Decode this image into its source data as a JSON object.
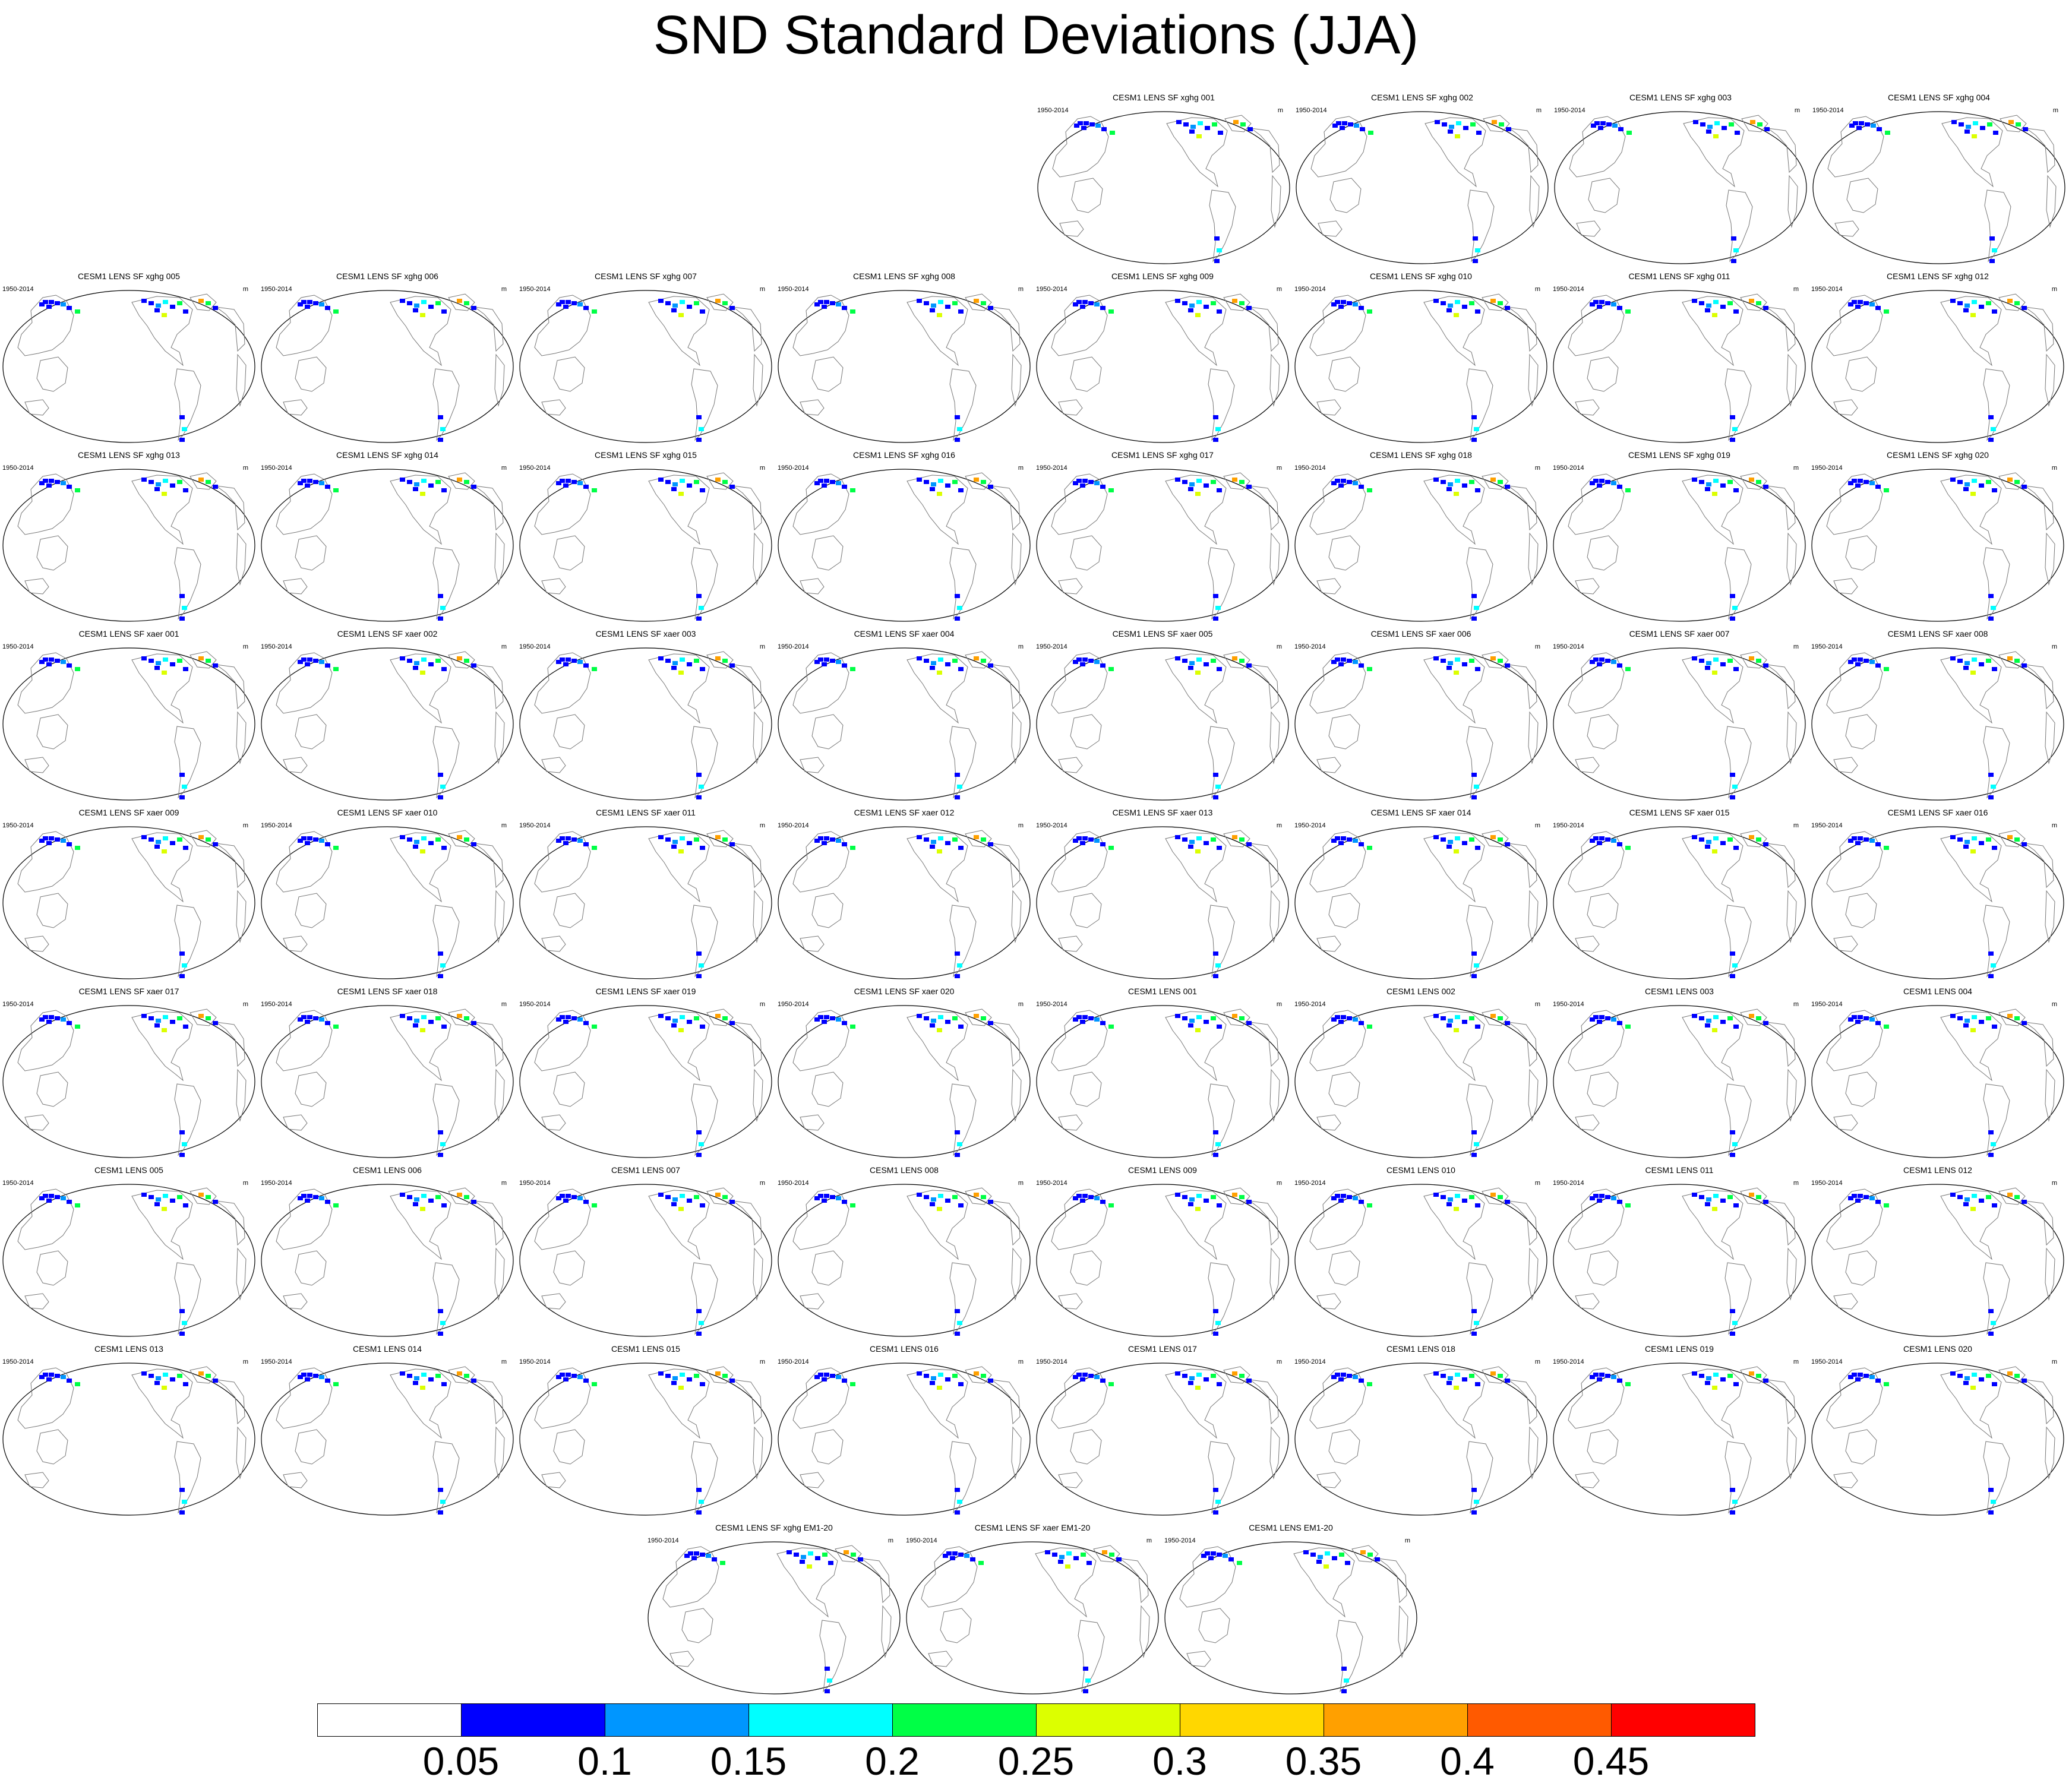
{
  "title": "SND Standard Deviations (JJA)",
  "period": "1950-2014",
  "units": "m",
  "rows": [
    [
      "CESM1 LENS SF xghg 001",
      "CESM1 LENS SF xghg 002",
      "CESM1 LENS SF xghg 003",
      "CESM1 LENS SF xghg 004"
    ],
    [
      "CESM1 LENS SF xghg 005",
      "CESM1 LENS SF xghg 006",
      "CESM1 LENS SF xghg 007",
      "CESM1 LENS SF xghg 008",
      "CESM1 LENS SF xghg 009",
      "CESM1 LENS SF xghg 010",
      "CESM1 LENS SF xghg 011",
      "CESM1 LENS SF xghg 012"
    ],
    [
      "CESM1 LENS SF xghg 013",
      "CESM1 LENS SF xghg 014",
      "CESM1 LENS SF xghg 015",
      "CESM1 LENS SF xghg 016",
      "CESM1 LENS SF xghg 017",
      "CESM1 LENS SF xghg 018",
      "CESM1 LENS SF xghg 019",
      "CESM1 LENS SF xghg 020"
    ],
    [
      "CESM1 LENS SF xaer 001",
      "CESM1 LENS SF xaer 002",
      "CESM1 LENS SF xaer 003",
      "CESM1 LENS SF xaer 004",
      "CESM1 LENS SF xaer 005",
      "CESM1 LENS SF xaer 006",
      "CESM1 LENS SF xaer 007",
      "CESM1 LENS SF xaer 008"
    ],
    [
      "CESM1 LENS SF xaer 009",
      "CESM1 LENS SF xaer 010",
      "CESM1 LENS SF xaer 011",
      "CESM1 LENS SF xaer 012",
      "CESM1 LENS SF xaer 013",
      "CESM1 LENS SF xaer 014",
      "CESM1 LENS SF xaer 015",
      "CESM1 LENS SF xaer 016"
    ],
    [
      "CESM1 LENS SF xaer 017",
      "CESM1 LENS SF xaer 018",
      "CESM1 LENS SF xaer 019",
      "CESM1 LENS SF xaer 020",
      "CESM1 LENS 001",
      "CESM1 LENS 002",
      "CESM1 LENS 003",
      "CESM1 LENS 004"
    ],
    [
      "CESM1 LENS 005",
      "CESM1 LENS 006",
      "CESM1 LENS 007",
      "CESM1 LENS 008",
      "CESM1 LENS 009",
      "CESM1 LENS 010",
      "CESM1 LENS 011",
      "CESM1 LENS 012"
    ],
    [
      "CESM1 LENS 013",
      "CESM1 LENS 014",
      "CESM1 LENS 015",
      "CESM1 LENS 016",
      "CESM1 LENS 017",
      "CESM1 LENS 018",
      "CESM1 LENS 019",
      "CESM1 LENS 020"
    ],
    [
      "CESM1 LENS SF xghg EM1-20",
      "CESM1 LENS SF xaer EM1-20",
      "CESM1 LENS EM1-20"
    ]
  ],
  "colorbar": {
    "labels": [
      "0.05",
      "0.1",
      "0.15",
      "0.2",
      "0.25",
      "0.3",
      "0.35",
      "0.4",
      "0.45"
    ],
    "colors": [
      "#ffffff",
      "#0000ff",
      "#0096ff",
      "#00ffff",
      "#00ff46",
      "#dcff00",
      "#ffd700",
      "#ffa000",
      "#ff5a00",
      "#ff0000"
    ]
  }
}
